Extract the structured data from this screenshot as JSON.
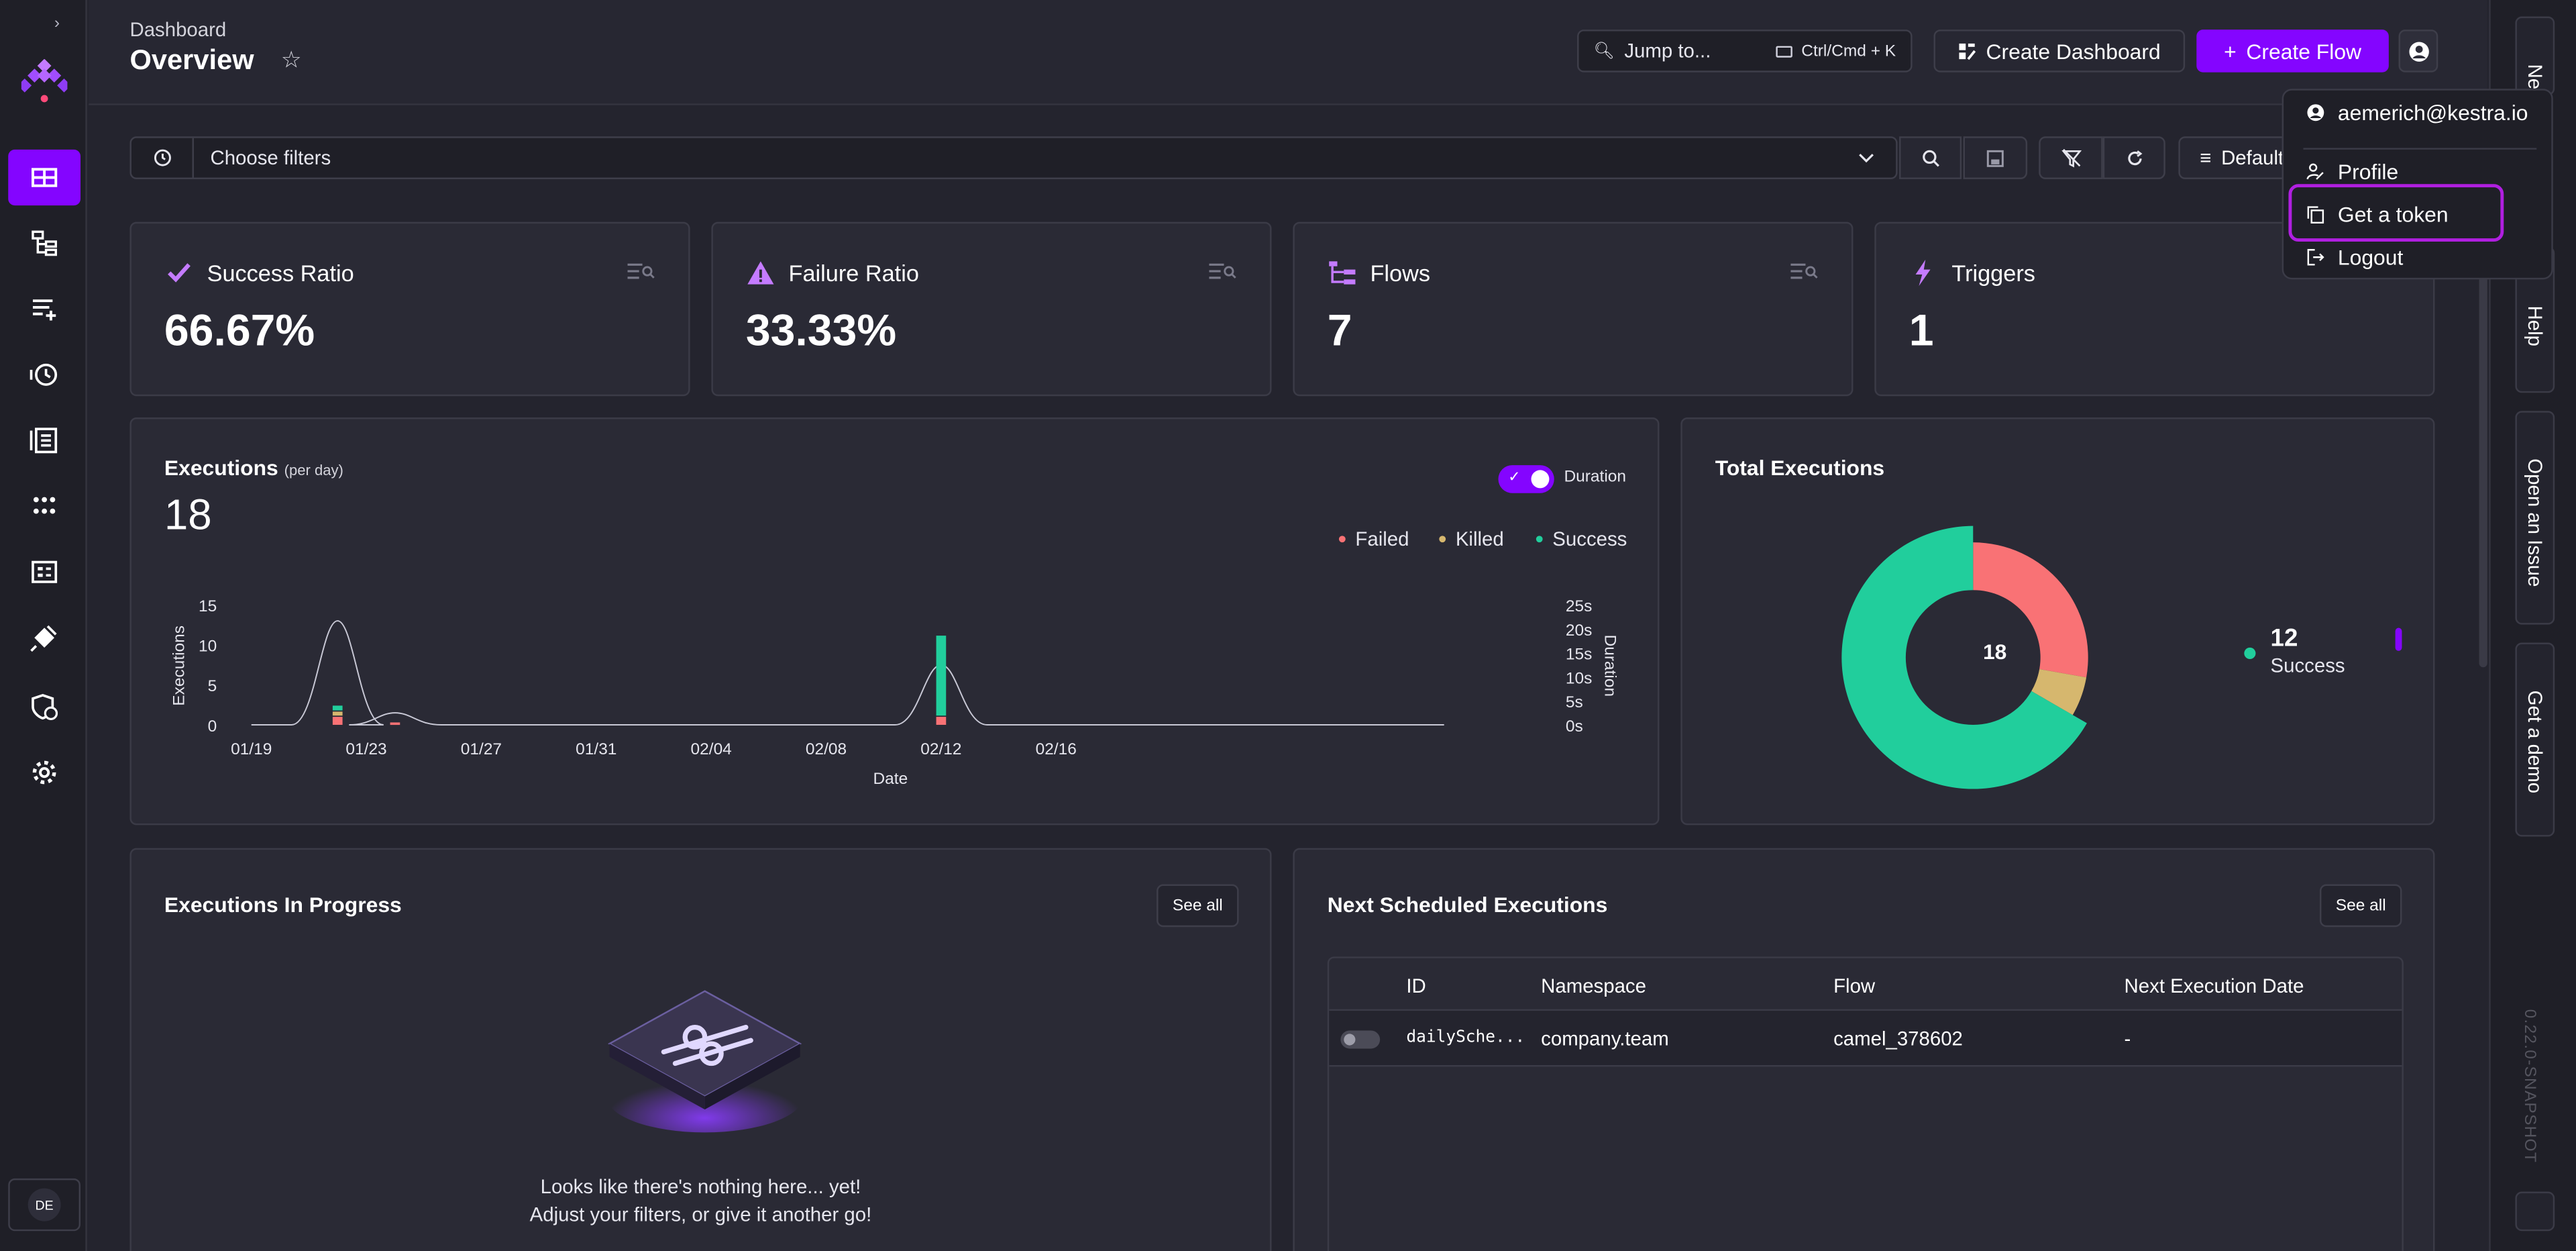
{
  "header": {
    "breadcrumb": "Dashboard",
    "title": "Overview",
    "jump_label": "Jump to...",
    "jump_shortcut": "Ctrl/Cmd + K",
    "create_dashboard": "Create Dashboard",
    "create_flow": "Create Flow"
  },
  "filters": {
    "placeholder": "Choose filters",
    "default_label": "Default"
  },
  "stats": [
    {
      "label": "Success Ratio",
      "value": "66.67%"
    },
    {
      "label": "Failure Ratio",
      "value": "33.33%"
    },
    {
      "label": "Flows",
      "value": "7"
    },
    {
      "label": "Triggers",
      "value": "1"
    }
  ],
  "executions": {
    "title": "Executions",
    "subtitle": "(per day)",
    "total": "18",
    "toggle_label": "Duration",
    "legend": {
      "failed": "Failed",
      "killed": "Killed",
      "success": "Success"
    }
  },
  "chart_data": {
    "type": "bar",
    "xlabel": "Date",
    "ylabel": "Executions",
    "y2label": "Duration",
    "ylim": [
      0,
      15
    ],
    "y_ticks": [
      "15",
      "10",
      "5",
      "0"
    ],
    "y2_ticks": [
      "25s",
      "20s",
      "15s",
      "10s",
      "5s",
      "0s"
    ],
    "x_ticks": [
      "01/19",
      "01/23",
      "01/27",
      "01/31",
      "02/04",
      "02/08",
      "02/12",
      "02/16"
    ],
    "series": [
      {
        "name": "Failed",
        "color": "#f97275",
        "values": [
          {
            "x": "01/22",
            "y": 1
          },
          {
            "x": "01/24",
            "y": 0.3
          },
          {
            "x": "02/12",
            "y": 1
          }
        ]
      },
      {
        "name": "Killed",
        "color": "#d6b76e",
        "values": [
          {
            "x": "01/22",
            "y": 0.5
          }
        ]
      },
      {
        "name": "Success",
        "color": "#21ce9c",
        "values": [
          {
            "x": "01/22",
            "y": 0.6
          },
          {
            "x": "02/12",
            "y": 10
          }
        ]
      }
    ],
    "duration_line": [
      {
        "x": "01/22",
        "y": 13
      },
      {
        "x": "01/24",
        "y": 1.5
      },
      {
        "x": "02/12",
        "y": 7.5
      }
    ],
    "grid": false
  },
  "total_executions": {
    "title": "Total Executions",
    "center": "18",
    "legend_value": "12",
    "legend_label": "Success",
    "slices": [
      {
        "name": "Failed",
        "value": 5,
        "color": "#f97275"
      },
      {
        "name": "Killed",
        "value": 1,
        "color": "#d6b76e"
      },
      {
        "name": "Success",
        "value": 12,
        "color": "#21ce9c"
      }
    ]
  },
  "in_progress": {
    "title": "Executions In Progress",
    "see_all": "See all",
    "empty_line1": "Looks like there's nothing here... yet!",
    "empty_line2": "Adjust your filters, or give it another go!"
  },
  "scheduled": {
    "title": "Next Scheduled Executions",
    "see_all": "See all",
    "columns": [
      "ID",
      "Namespace",
      "Flow",
      "Next Execution Date"
    ],
    "rows": [
      {
        "id": "dailySche...",
        "namespace": "company.team",
        "flow": "camel_378602",
        "date": "-"
      }
    ]
  },
  "user_menu": {
    "email": "aemerich@kestra.io",
    "profile": "Profile",
    "token": "Get a token",
    "logout": "Logout"
  },
  "right_rail": {
    "news": "News",
    "help": "Help",
    "issue": "Open an Issue",
    "demo": "Get a demo",
    "version": "0.22.0-SNAPSHOT"
  },
  "sidebar": {
    "user_initials": "DE"
  },
  "colors": {
    "accent": "#8405ff",
    "failed": "#f97275",
    "killed": "#d6b76e",
    "success": "#21ce9c"
  }
}
